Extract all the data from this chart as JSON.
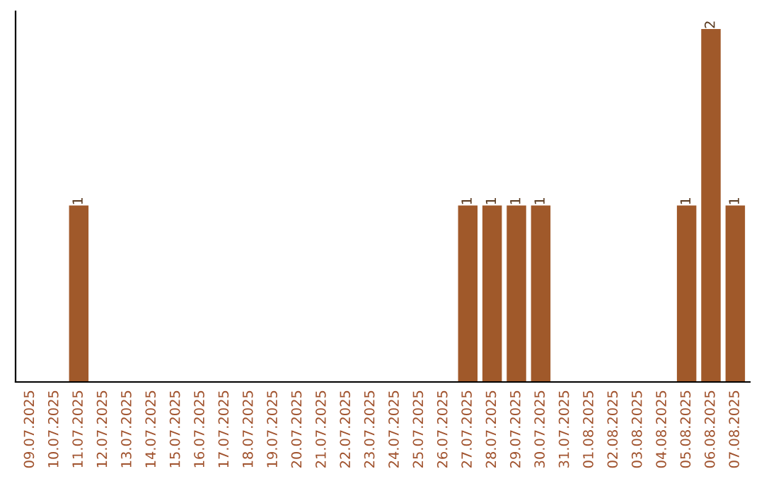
{
  "chart_data": {
    "type": "bar",
    "categories": [
      "09.07.2025",
      "10.07.2025",
      "11.07.2025",
      "12.07.2025",
      "13.07.2025",
      "14.07.2025",
      "15.07.2025",
      "16.07.2025",
      "17.07.2025",
      "18.07.2025",
      "19.07.2025",
      "20.07.2025",
      "21.07.2025",
      "22.07.2025",
      "23.07.2025",
      "24.07.2025",
      "25.07.2025",
      "26.07.2025",
      "27.07.2025",
      "28.07.2025",
      "29.07.2025",
      "30.07.2025",
      "31.07.2025",
      "01.08.2025",
      "02.08.2025",
      "03.08.2025",
      "04.08.2025",
      "05.08.2025",
      "06.08.2025",
      "07.08.2025"
    ],
    "values": [
      0,
      0,
      1,
      0,
      0,
      0,
      0,
      0,
      0,
      0,
      0,
      0,
      0,
      0,
      0,
      0,
      0,
      0,
      1,
      1,
      1,
      1,
      0,
      0,
      0,
      0,
      0,
      1,
      2,
      1
    ],
    "value_labels": [
      null,
      null,
      "1",
      null,
      null,
      null,
      null,
      null,
      null,
      null,
      null,
      null,
      null,
      null,
      null,
      null,
      null,
      null,
      "1",
      "1",
      "1",
      "1",
      null,
      null,
      null,
      null,
      null,
      "1",
      "2",
      "1"
    ],
    "color": "#a0592a",
    "grid": false,
    "legend": false
  }
}
